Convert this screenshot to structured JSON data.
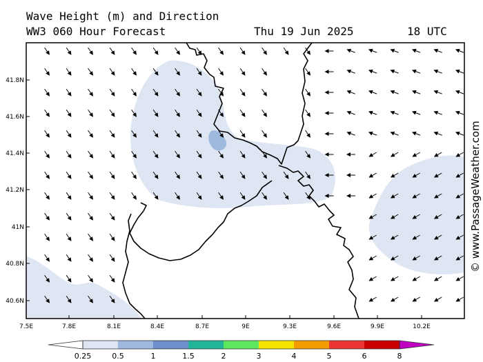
{
  "header": {
    "title": "Wave Height (m) and Direction",
    "model": "WW3 060 Hour Forecast",
    "date": "Thu 19 Jun 2025",
    "time": "18 UTC"
  },
  "credit": "© www.PassageWeather.com",
  "map": {
    "lon_labels": [
      "7.5E",
      "7.8E",
      "8.1E",
      "8.4E",
      "8.7E",
      "9E",
      "9.3E",
      "9.6E",
      "9.9E",
      "10.2E"
    ],
    "lat_labels": [
      "41.8N",
      "41.6N",
      "41.4N",
      "41.2N",
      "41N",
      "40.8N",
      "40.6N"
    ],
    "colors": {
      "shade_0_25": "#dfe6f3",
      "shade_0_5": "#9fb9de",
      "coast": "#000000"
    }
  },
  "colorbar": {
    "labels": [
      "0.25",
      "0.5",
      "1",
      "1.5",
      "2",
      "3",
      "4",
      "5",
      "6",
      "8"
    ],
    "colors": [
      "#ffffff",
      "#dfe6f3",
      "#9fb9de",
      "#6d8fce",
      "#22b59a",
      "#5ee85e",
      "#f2e400",
      "#f59c00",
      "#ee3333",
      "#c80000",
      "#c000c0"
    ]
  }
}
